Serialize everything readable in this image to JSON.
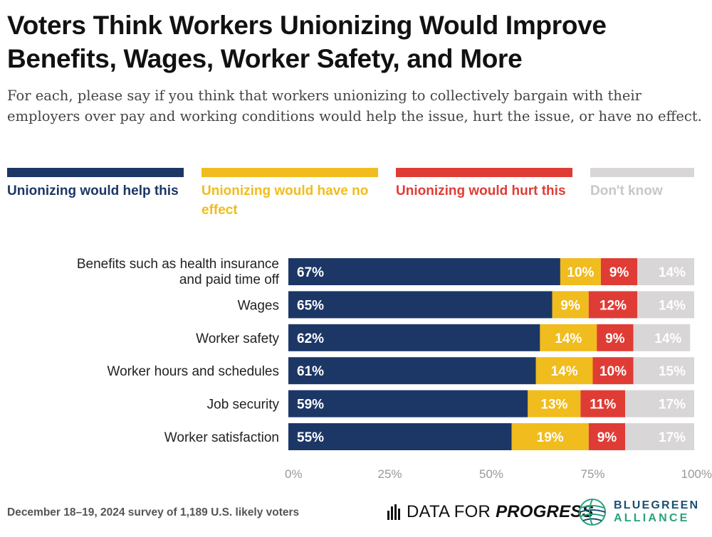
{
  "header": {
    "title": "Voters Think Workers Unionizing Would Improve Benefits, Wages, Worker Safety, and More",
    "subtitle": "For each, please say if you think that workers unionizing to collectively bargain with their employers over pay and working conditions would help the issue, hurt the issue, or have no effect."
  },
  "legend": [
    {
      "label": "Unionizing would help this",
      "color": "#1c3766"
    },
    {
      "label": "Unionizing would have no effect",
      "color": "#f0bc1e"
    },
    {
      "label": "Unionizing would hurt this",
      "color": "#e03c36"
    },
    {
      "label": "Don't know",
      "color": "#d9d6d8"
    }
  ],
  "chart_data": {
    "type": "bar",
    "orientation": "horizontal",
    "stacked": true,
    "categories": [
      "Benefits such as health insurance and paid time off",
      "Wages",
      "Worker safety",
      "Worker hours and schedules",
      "Job security",
      "Worker satisfaction"
    ],
    "series": [
      {
        "name": "Unionizing would help this",
        "values": [
          67,
          65,
          62,
          61,
          59,
          55
        ],
        "color": "#1c3766"
      },
      {
        "name": "Unionizing would have no effect",
        "values": [
          10,
          9,
          14,
          14,
          13,
          19
        ],
        "color": "#f0bc1e"
      },
      {
        "name": "Unionizing would hurt this",
        "values": [
          9,
          12,
          9,
          10,
          11,
          9
        ],
        "color": "#e03c36"
      },
      {
        "name": "Don't know",
        "values": [
          14,
          14,
          14,
          15,
          17,
          17
        ],
        "color": "#d9d6d8"
      }
    ],
    "xlim": [
      0,
      100
    ],
    "xticks": [
      "0%",
      "25%",
      "50%",
      "75%",
      "100%"
    ],
    "grid": false,
    "legend_position": "top"
  },
  "footer": {
    "survey_note": "December 18–19, 2024 survey of 1,189 U.S. likely voters",
    "dfp_logo_part1": "DATA FOR",
    "dfp_logo_part2": "PROGRESS",
    "bga_logo_line1": "BLUEGREEN",
    "bga_logo_line2": "ALLIANCE"
  }
}
